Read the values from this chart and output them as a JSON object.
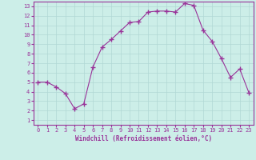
{
  "x": [
    0,
    1,
    2,
    3,
    4,
    5,
    6,
    7,
    8,
    9,
    10,
    11,
    12,
    13,
    14,
    15,
    16,
    17,
    18,
    19,
    20,
    21,
    22,
    23
  ],
  "y": [
    5.0,
    5.0,
    4.5,
    3.8,
    2.2,
    2.7,
    6.6,
    8.7,
    9.5,
    10.4,
    11.3,
    11.4,
    12.4,
    12.5,
    12.5,
    12.4,
    13.3,
    13.1,
    10.5,
    9.3,
    7.5,
    5.5,
    6.4,
    3.9
  ],
  "line_color": "#993399",
  "marker": "+",
  "marker_size": 4,
  "bg_color": "#cceee8",
  "grid_color": "#b0d8d4",
  "xlabel": "Windchill (Refroidissement éolien,°C)",
  "xlim_min": -0.5,
  "xlim_max": 23.5,
  "ylim_min": 0.5,
  "ylim_max": 13.5,
  "yticks": [
    1,
    2,
    3,
    4,
    5,
    6,
    7,
    8,
    9,
    10,
    11,
    12,
    13
  ],
  "xticks": [
    0,
    1,
    2,
    3,
    4,
    5,
    6,
    7,
    8,
    9,
    10,
    11,
    12,
    13,
    14,
    15,
    16,
    17,
    18,
    19,
    20,
    21,
    22,
    23
  ],
  "line_color_hex": "#993399",
  "tick_color": "#993399",
  "label_color": "#993399",
  "tick_fontsize": 5,
  "xlabel_fontsize": 5.5
}
